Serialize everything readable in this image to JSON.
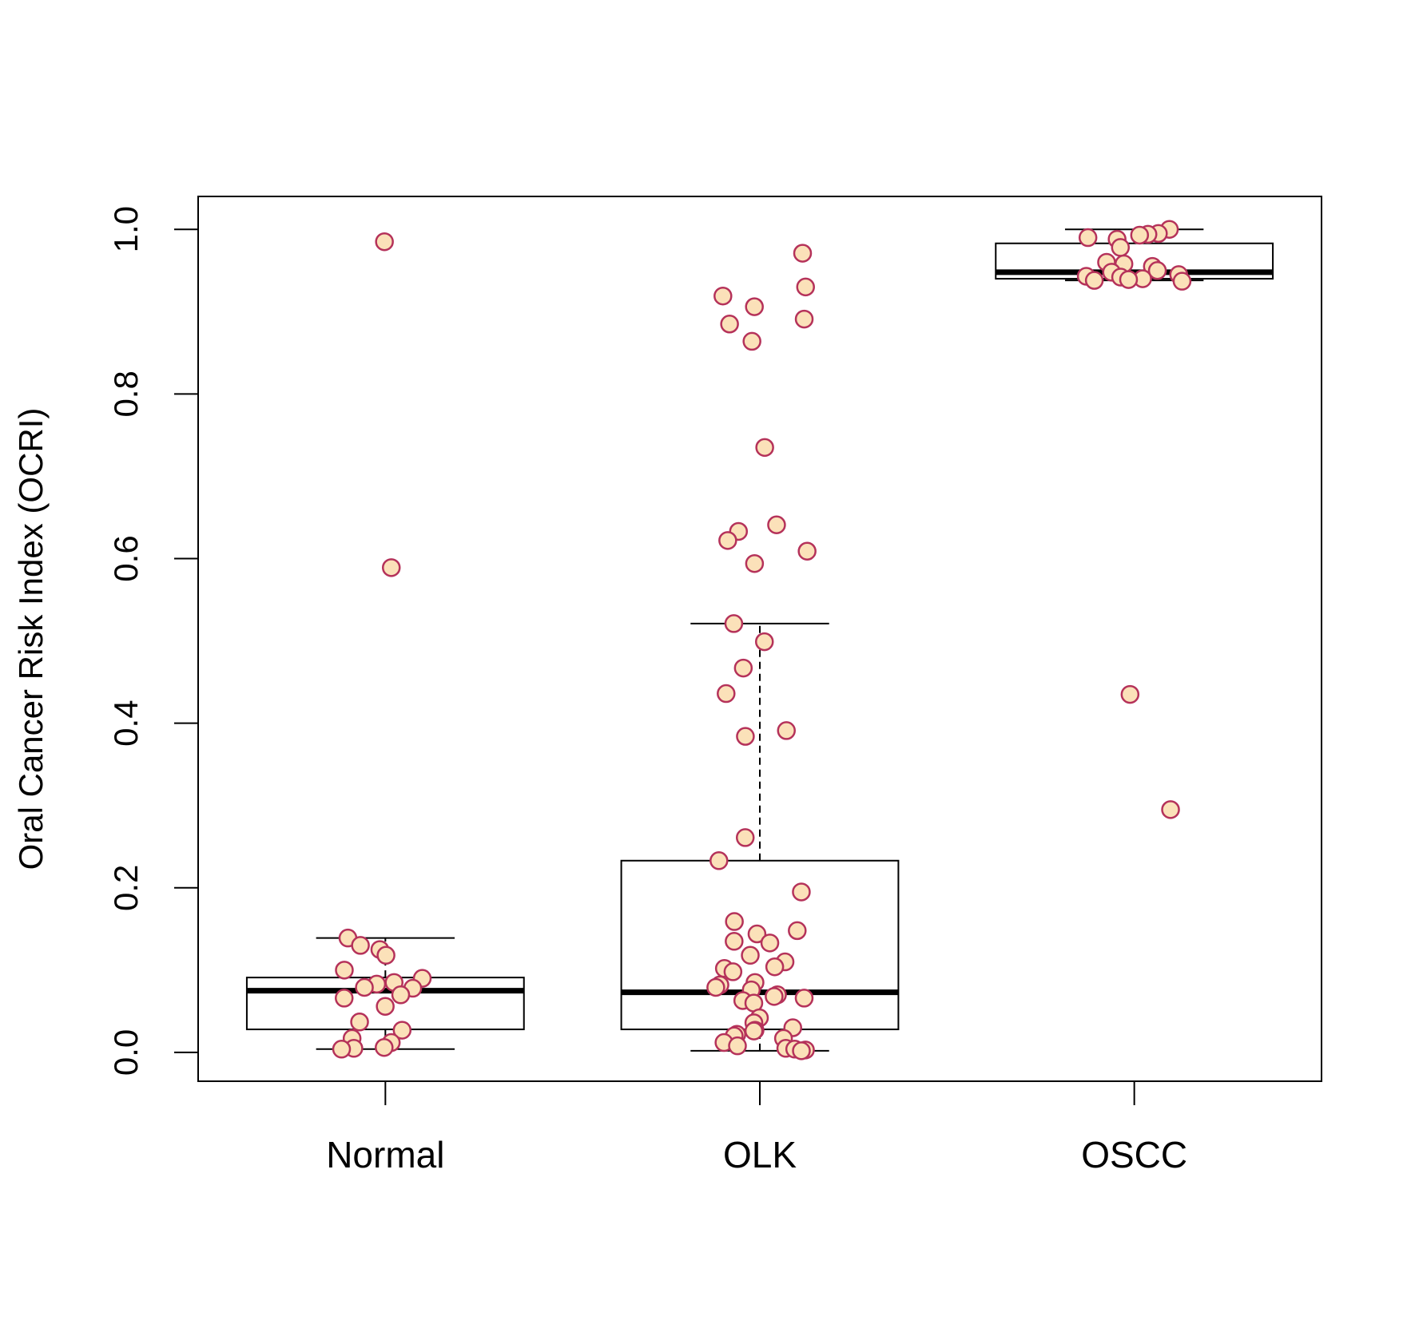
{
  "chart_data": {
    "type": "box",
    "title": "",
    "xlabel": "",
    "ylabel": "Oral Cancer Risk Index (OCRI)",
    "ylim": [
      -0.035,
      1.04
    ],
    "yticks": [
      "0.0",
      "0.2",
      "0.4",
      "0.6",
      "0.8",
      "1.0"
    ],
    "categories": [
      "Normal",
      "OLK",
      "OSCC"
    ],
    "boxes": [
      {
        "category": "Normal",
        "whisker_low": 0.004,
        "q1": 0.028,
        "median": 0.075,
        "q3": 0.091,
        "whisker_high": 0.139
      },
      {
        "category": "OLK",
        "whisker_low": 0.002,
        "q1": 0.028,
        "median": 0.073,
        "q3": 0.233,
        "whisker_high": 0.521
      },
      {
        "category": "OSCC",
        "whisker_low": 0.938,
        "q1": 0.94,
        "median": 0.948,
        "q3": 0.983,
        "whisker_high": 1.0
      }
    ],
    "points": [
      {
        "category": "Normal",
        "values": [
          0.985,
          0.589,
          0.139,
          0.13,
          0.125,
          0.118,
          0.1,
          0.09,
          0.085,
          0.083,
          0.079,
          0.078,
          0.07,
          0.066,
          0.056,
          0.037,
          0.027,
          0.017,
          0.012,
          0.006,
          0.005,
          0.004
        ]
      },
      {
        "category": "OLK",
        "values": [
          0.971,
          0.93,
          0.919,
          0.906,
          0.891,
          0.885,
          0.864,
          0.735,
          0.641,
          0.633,
          0.622,
          0.609,
          0.594,
          0.521,
          0.499,
          0.467,
          0.436,
          0.391,
          0.384,
          0.261,
          0.233,
          0.195,
          0.159,
          0.148,
          0.144,
          0.135,
          0.133,
          0.118,
          0.11,
          0.104,
          0.102,
          0.098,
          0.085,
          0.082,
          0.079,
          0.076,
          0.07,
          0.068,
          0.066,
          0.063,
          0.06,
          0.042,
          0.036,
          0.03,
          0.027,
          0.026,
          0.022,
          0.02,
          0.017,
          0.012,
          0.008,
          0.005,
          0.004,
          0.003,
          0.002
        ]
      },
      {
        "category": "OSCC",
        "values": [
          1.0,
          0.995,
          0.994,
          0.993,
          0.99,
          0.988,
          0.978,
          0.96,
          0.958,
          0.955,
          0.95,
          0.948,
          0.945,
          0.943,
          0.942,
          0.94,
          0.939,
          0.938,
          0.937,
          0.435,
          0.295
        ]
      }
    ],
    "colors": {
      "point_fill": "#fbe1b9",
      "point_stroke": "#b5325a",
      "box": "#000000"
    },
    "grid": false,
    "legend": "none"
  }
}
